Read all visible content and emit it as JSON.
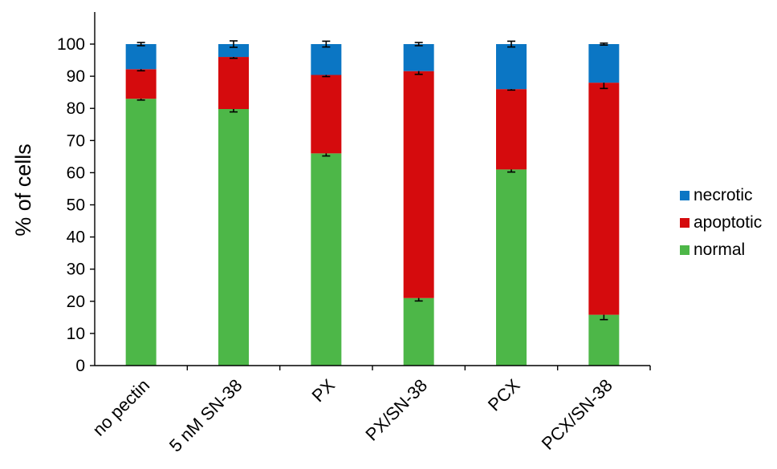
{
  "chart_data": {
    "type": "bar",
    "stacked": true,
    "ylabel": "% of cells",
    "xlabel": "",
    "ylim": [
      0,
      100
    ],
    "yticks": [
      0,
      10,
      20,
      30,
      40,
      50,
      60,
      70,
      80,
      90,
      100
    ],
    "categories": [
      "no pectin",
      "5 nM SN-38",
      "PX",
      "PX/SN-38",
      "PCX",
      "PCX/SN-38"
    ],
    "series": [
      {
        "name": "normal",
        "color": "#4db748",
        "values": [
          83,
          79.8,
          66,
          21,
          61,
          15.8
        ],
        "errors": [
          0.4,
          0.9,
          0.8,
          0.9,
          0.8,
          1.5
        ]
      },
      {
        "name": "apoptotic",
        "color": "#d50b0d",
        "values": [
          9.2,
          16.2,
          24.4,
          70.6,
          25,
          72.2
        ],
        "errors": [
          0.5,
          0.4,
          0.5,
          1.0,
          0.3,
          1.8
        ]
      },
      {
        "name": "necrotic",
        "color": "#0b76c4",
        "values": [
          7.8,
          4.0,
          9.6,
          8.4,
          14,
          12
        ],
        "errors": [
          0.5,
          1.0,
          0.9,
          0.5,
          0.9,
          0.3
        ]
      }
    ],
    "legend_position": "right",
    "grid": false
  }
}
